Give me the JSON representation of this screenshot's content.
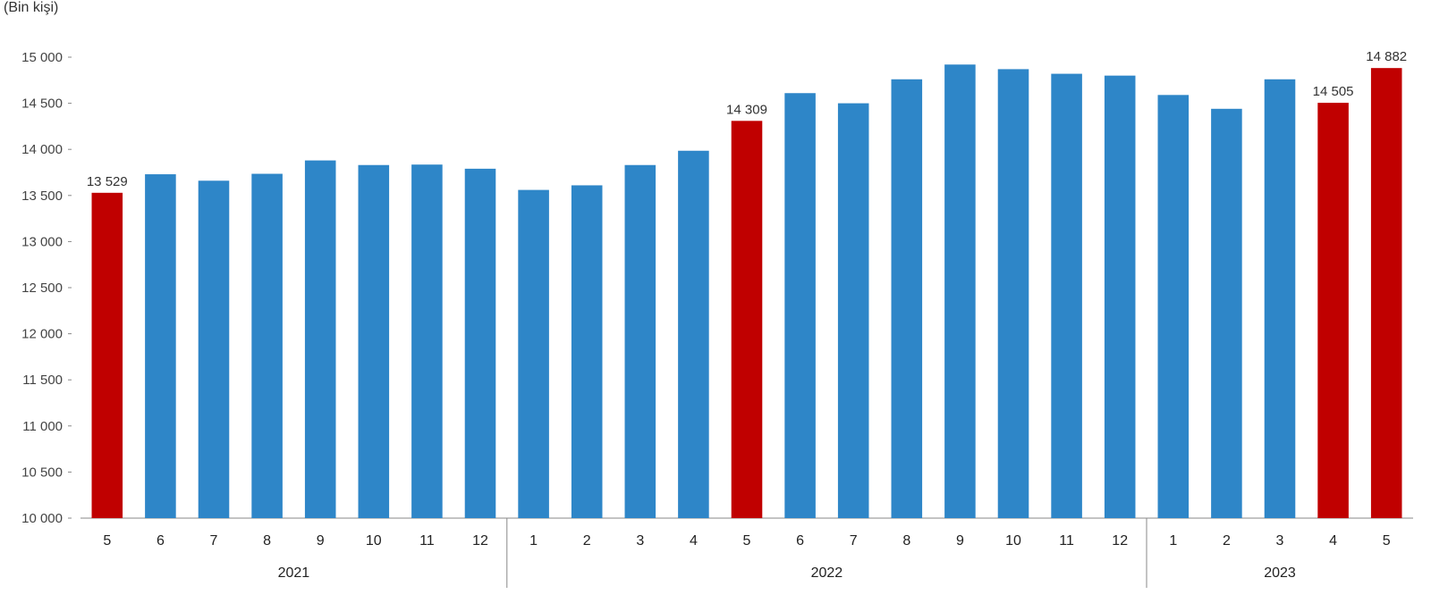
{
  "chart_data": {
    "type": "bar",
    "unit_label": "(Bin kişi)",
    "title": "",
    "xlabel": "",
    "ylabel": "",
    "ylim": [
      10000,
      15000
    ],
    "y_ticks": [
      "10 000",
      "10 500",
      "11 000",
      "11 500",
      "12 000",
      "12 500",
      "13 000",
      "13 500",
      "14 000",
      "14 500",
      "15 000"
    ],
    "categories": [
      "5",
      "6",
      "7",
      "8",
      "9",
      "10",
      "11",
      "12",
      "1",
      "2",
      "3",
      "4",
      "5",
      "6",
      "7",
      "8",
      "9",
      "10",
      "11",
      "12",
      "1",
      "2",
      "3",
      "4",
      "5"
    ],
    "values": [
      13529,
      13730,
      13660,
      13735,
      13880,
      13830,
      13835,
      13790,
      13560,
      13610,
      13830,
      13985,
      14309,
      14610,
      14500,
      14760,
      14920,
      14870,
      14820,
      14800,
      14590,
      14440,
      14760,
      14505,
      14882
    ],
    "highlight": [
      0,
      12,
      23,
      24
    ],
    "data_labels": {
      "0": "13 529",
      "12": "14 309",
      "23": "14 505",
      "24": "14 882"
    },
    "years": [
      {
        "label": "2021",
        "from": 0,
        "to": 7
      },
      {
        "label": "2022",
        "from": 8,
        "to": 19
      },
      {
        "label": "2023",
        "from": 20,
        "to": 24
      }
    ],
    "colors": {
      "bar": "#2e86c8",
      "highlight": "#c00000",
      "axis": "#888888",
      "text": "#222222"
    },
    "grid": false,
    "legend": "none"
  }
}
